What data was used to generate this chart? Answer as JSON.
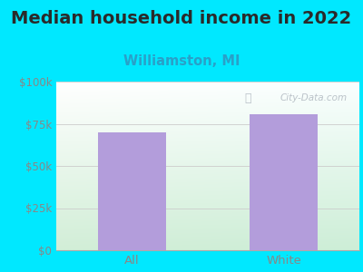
{
  "title": "Median household income in 2022",
  "subtitle": "Williamston, MI",
  "categories": [
    "All",
    "White"
  ],
  "values": [
    70000,
    80500
  ],
  "bar_color": "#b39ddb",
  "background_outer": "#00e8ff",
  "ylim": [
    0,
    100000
  ],
  "yticks": [
    0,
    25000,
    50000,
    75000,
    100000
  ],
  "ytick_labels": [
    "$0",
    "$25k",
    "$50k",
    "$75k",
    "$100k"
  ],
  "title_fontsize": 14,
  "subtitle_fontsize": 10.5,
  "subtitle_color": "#29a0c8",
  "tick_color": "#888888",
  "watermark": "City-Data.com",
  "grid_color": "#cccccc",
  "bar_width": 0.45
}
